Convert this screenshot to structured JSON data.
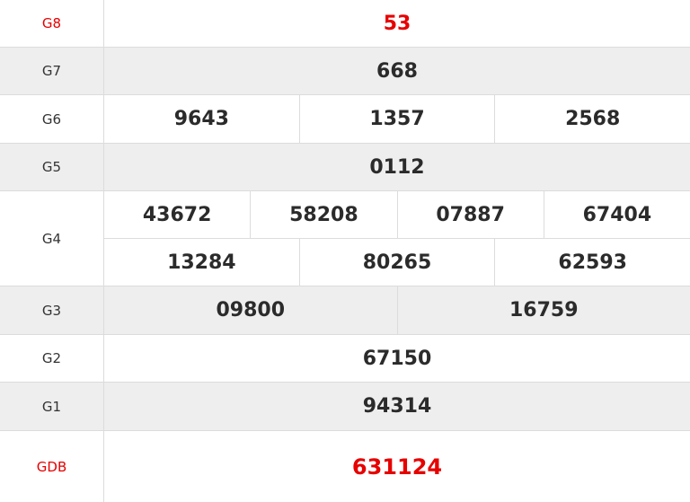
{
  "colors": {
    "highlight": "#e60000",
    "text": "#2b2b2b",
    "alt_row": "#eeeeee"
  },
  "prizes": [
    {
      "label": "G8",
      "values": [
        "53"
      ]
    },
    {
      "label": "G7",
      "values": [
        "668"
      ]
    },
    {
      "label": "G6",
      "values": [
        "9643",
        "1357",
        "2568"
      ]
    },
    {
      "label": "G5",
      "values": [
        "0112"
      ]
    },
    {
      "label": "G4",
      "values": [
        "43672",
        "58208",
        "07887",
        "67404",
        "13284",
        "80265",
        "62593"
      ]
    },
    {
      "label": "G3",
      "values": [
        "09800",
        "16759"
      ]
    },
    {
      "label": "G2",
      "values": [
        "67150"
      ]
    },
    {
      "label": "G1",
      "values": [
        "94314"
      ]
    },
    {
      "label": "GDB",
      "values": [
        "631124"
      ]
    }
  ]
}
